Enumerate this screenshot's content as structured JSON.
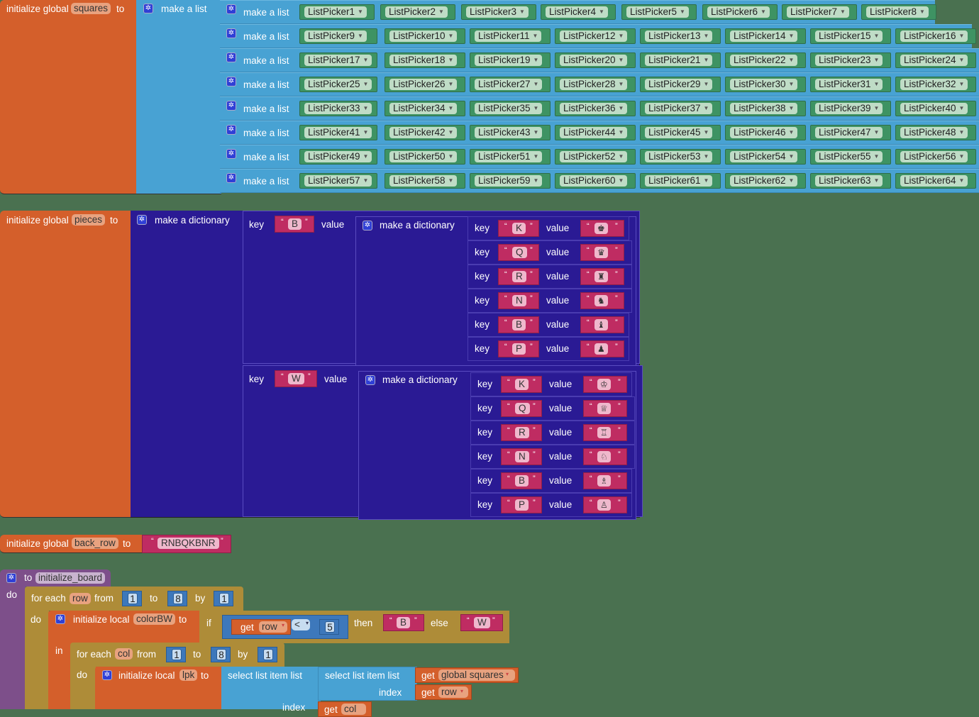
{
  "squares_block": {
    "prefix": "initialize global",
    "var_name": "squares",
    "to": "to",
    "outer_list_label": "make a list",
    "inner_list_label": "make a list",
    "rows": [
      [
        "ListPicker1",
        "ListPicker2",
        "ListPicker3",
        "ListPicker4",
        "ListPicker5",
        "ListPicker6",
        "ListPicker7",
        "ListPicker8"
      ],
      [
        "ListPicker9",
        "ListPicker10",
        "ListPicker11",
        "ListPicker12",
        "ListPicker13",
        "ListPicker14",
        "ListPicker15",
        "ListPicker16"
      ],
      [
        "ListPicker17",
        "ListPicker18",
        "ListPicker19",
        "ListPicker20",
        "ListPicker21",
        "ListPicker22",
        "ListPicker23",
        "ListPicker24"
      ],
      [
        "ListPicker25",
        "ListPicker26",
        "ListPicker27",
        "ListPicker28",
        "ListPicker29",
        "ListPicker30",
        "ListPicker31",
        "ListPicker32"
      ],
      [
        "ListPicker33",
        "ListPicker34",
        "ListPicker35",
        "ListPicker36",
        "ListPicker37",
        "ListPicker38",
        "ListPicker39",
        "ListPicker40"
      ],
      [
        "ListPicker41",
        "ListPicker42",
        "ListPicker43",
        "ListPicker44",
        "ListPicker45",
        "ListPicker46",
        "ListPicker47",
        "ListPicker48"
      ],
      [
        "ListPicker49",
        "ListPicker50",
        "ListPicker51",
        "ListPicker52",
        "ListPicker53",
        "ListPicker54",
        "ListPicker55",
        "ListPicker56"
      ],
      [
        "ListPicker57",
        "ListPicker58",
        "ListPicker59",
        "ListPicker60",
        "ListPicker61",
        "ListPicker62",
        "ListPicker63",
        "ListPicker64"
      ]
    ]
  },
  "pieces_block": {
    "prefix": "initialize global",
    "var_name": "pieces",
    "to": "to",
    "outer_dict_label": "make a dictionary",
    "key_label": "key",
    "value_label": "value",
    "inner_dict_label": "make a dictionary",
    "groups": [
      {
        "key": "B",
        "entries": [
          {
            "key": "K",
            "value": "♚"
          },
          {
            "key": "Q",
            "value": "♛"
          },
          {
            "key": "R",
            "value": "♜"
          },
          {
            "key": "N",
            "value": "♞"
          },
          {
            "key": "B",
            "value": "♝"
          },
          {
            "key": "P",
            "value": "♟"
          }
        ]
      },
      {
        "key": "W",
        "entries": [
          {
            "key": "K",
            "value": "♔"
          },
          {
            "key": "Q",
            "value": "♕"
          },
          {
            "key": "R",
            "value": "♖"
          },
          {
            "key": "N",
            "value": "♘"
          },
          {
            "key": "B",
            "value": "♗"
          },
          {
            "key": "P",
            "value": "♙"
          }
        ]
      }
    ]
  },
  "back_row_block": {
    "prefix": "initialize global",
    "var_name": "back_row",
    "to": "to",
    "value": "RNBQKBNR"
  },
  "procedure_block": {
    "to": "to",
    "name": "initialize_board",
    "do": "do",
    "for_each": "for each",
    "row_var": "row",
    "from": "from",
    "from_val": "1",
    "to_kw": "to",
    "to_val": "8",
    "by": "by",
    "by_val": "1",
    "do2": "do",
    "init_local": "initialize local",
    "colorBW": "colorBW",
    "to2": "to",
    "if": "if",
    "get": "get",
    "get_row": "row",
    "op": "<",
    "cmp_val": "5",
    "then": "then",
    "then_val": "B",
    "else": "else",
    "else_val": "W",
    "in": "in",
    "col_var": "col",
    "col_from": "1",
    "col_to": "8",
    "col_by": "1",
    "do3": "do",
    "lpk": "lpk",
    "select_list_item_list": "select list item  list",
    "index": "index",
    "global_squares": "global squares",
    "get_col": "col"
  }
}
